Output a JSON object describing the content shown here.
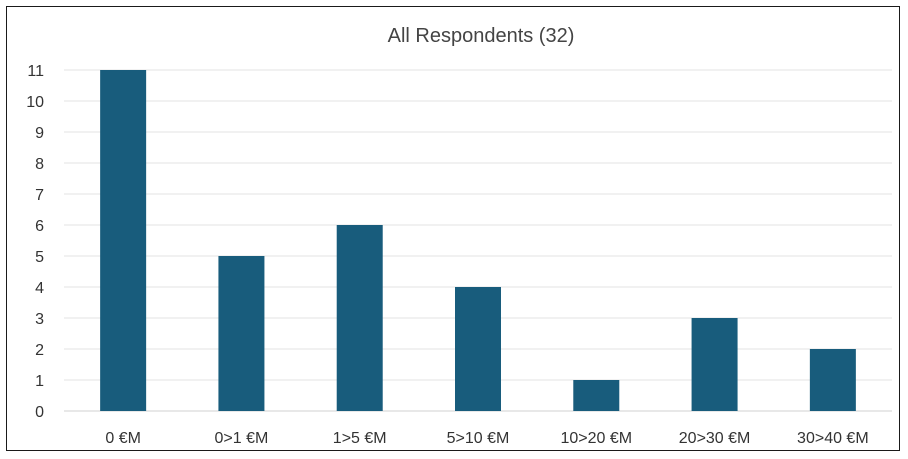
{
  "chart_data": {
    "type": "bar",
    "title": "All Respondents (32)",
    "xlabel": "",
    "ylabel": "",
    "categories": [
      "0 €M",
      "0>1 €M",
      "1>5 €M",
      "5>10 €M",
      "10>20 €M",
      "20>30 €M",
      "30>40 €M"
    ],
    "values": [
      11,
      5,
      6,
      4,
      1,
      3,
      2
    ],
    "ylim": [
      0,
      11
    ],
    "yticks": [
      0,
      1,
      2,
      3,
      4,
      5,
      6,
      7,
      8,
      9,
      10,
      11
    ],
    "grid": true,
    "legend": "none",
    "bar_color": "#185c7c"
  }
}
